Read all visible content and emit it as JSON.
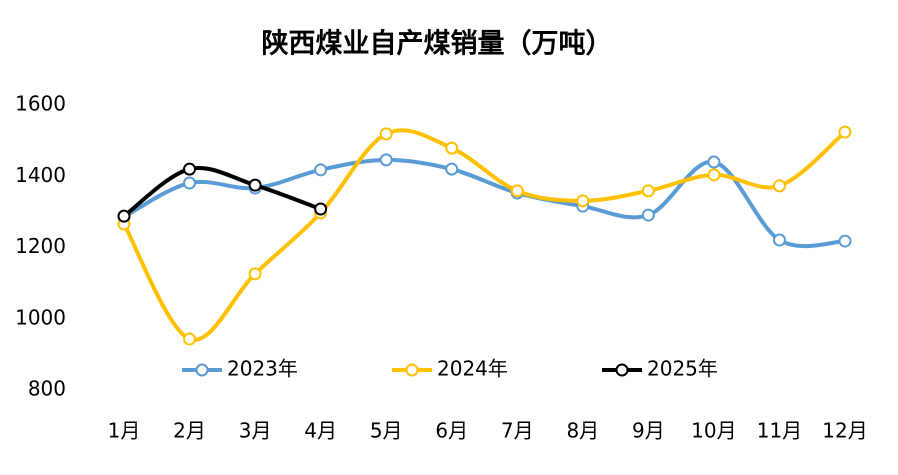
{
  "chart_data": {
    "type": "line",
    "title": "陕西煤业自产煤销量（万吨）",
    "categories": [
      "1月",
      "2月",
      "3月",
      "4月",
      "5月",
      "6月",
      "7月",
      "8月",
      "9月",
      "10月",
      "11月",
      "12月"
    ],
    "series": [
      {
        "name": "2023年",
        "color": "#5b9bd5",
        "values": [
          1286,
          1381,
          1367,
          1418,
          1446,
          1420,
          1353,
          1316,
          1291,
          1440,
          1221,
          1218
        ]
      },
      {
        "name": "2024年",
        "color": "#ffc000",
        "values": [
          1266,
          943,
          1126,
          1297,
          1519,
          1479,
          1359,
          1331,
          1359,
          1404,
          1373,
          1524
        ]
      },
      {
        "name": "2025年",
        "color": "#000000",
        "values": [
          1288,
          1420,
          1375,
          1308,
          null,
          null,
          null,
          null,
          null,
          null,
          null,
          null
        ]
      }
    ],
    "ylim": [
      800,
      1600
    ],
    "yticks": [
      800,
      1000,
      1200,
      1400,
      1600
    ],
    "grid": false,
    "legend": "bottom",
    "smooth": true
  }
}
